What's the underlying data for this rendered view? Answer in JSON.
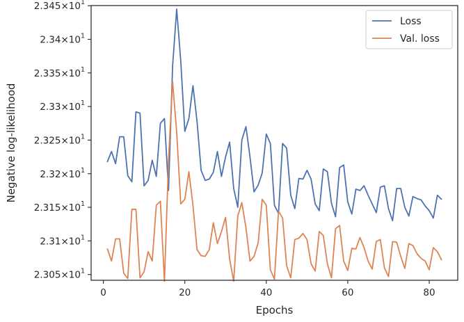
{
  "chart_data": {
    "type": "line",
    "title": "",
    "xlabel": "Epochs",
    "ylabel": "Negative log-likelihood",
    "xlim": [
      -3,
      87
    ],
    "ylim": [
      23.0414,
      23.4502
    ],
    "x_ticks": [
      0,
      20,
      40,
      60,
      80
    ],
    "x_tick_labels": [
      "0",
      "20",
      "40",
      "60",
      "80"
    ],
    "y_ticks": [
      23.05,
      23.1,
      23.15,
      23.2,
      23.25,
      23.3,
      23.35,
      23.4,
      23.45
    ],
    "y_tick_labels": [
      {
        "mantissa": "2.305",
        "exponent": "1"
      },
      {
        "mantissa": "2.31",
        "exponent": "1"
      },
      {
        "mantissa": "2.315",
        "exponent": "1"
      },
      {
        "mantissa": "2.32",
        "exponent": "1"
      },
      {
        "mantissa": "2.325",
        "exponent": "1"
      },
      {
        "mantissa": "2.33",
        "exponent": "1"
      },
      {
        "mantissa": "2.335",
        "exponent": "1"
      },
      {
        "mantissa": "2.34",
        "exponent": "1"
      },
      {
        "mantissa": "2.345",
        "exponent": "1"
      }
    ],
    "y_tick_times": "×10",
    "grid": false,
    "legend_position": "top-right",
    "series": [
      {
        "name": "Loss",
        "color": "#4c72b0",
        "x": [
          1,
          2,
          3,
          4,
          5,
          6,
          7,
          8,
          9,
          10,
          11,
          12,
          13,
          14,
          15,
          16,
          17,
          18,
          19,
          20,
          21,
          22,
          23,
          24,
          25,
          26,
          27,
          28,
          29,
          30,
          31,
          32,
          33,
          34,
          35,
          36,
          37,
          38,
          39,
          40,
          41,
          42,
          43,
          44,
          45,
          46,
          47,
          48,
          49,
          50,
          51,
          52,
          53,
          54,
          55,
          56,
          57,
          58,
          59,
          60,
          61,
          62,
          63,
          64,
          65,
          66,
          67,
          68,
          69,
          70,
          71,
          72,
          73,
          74,
          75,
          76,
          77,
          78,
          79,
          80,
          81,
          82,
          83
        ],
        "y": [
          23.218,
          23.233,
          23.215,
          23.255,
          23.255,
          23.197,
          23.188,
          23.292,
          23.29,
          23.182,
          23.19,
          23.22,
          23.196,
          23.275,
          23.282,
          23.175,
          23.36,
          23.445,
          23.368,
          23.263,
          23.282,
          23.331,
          23.278,
          23.205,
          23.19,
          23.192,
          23.202,
          23.233,
          23.196,
          23.225,
          23.247,
          23.178,
          23.15,
          23.25,
          23.27,
          23.225,
          23.173,
          23.183,
          23.201,
          23.259,
          23.245,
          23.153,
          23.141,
          23.245,
          23.238,
          23.168,
          23.148,
          23.193,
          23.192,
          23.205,
          23.192,
          23.155,
          23.145,
          23.207,
          23.203,
          23.156,
          23.136,
          23.209,
          23.213,
          23.158,
          23.14,
          23.177,
          23.175,
          23.182,
          23.168,
          23.155,
          23.142,
          23.18,
          23.182,
          23.148,
          23.13,
          23.178,
          23.178,
          23.15,
          23.137,
          23.166,
          23.163,
          23.161,
          23.152,
          23.145,
          23.134,
          23.168,
          23.162
        ]
      },
      {
        "name": "Val. loss",
        "color": "#dd8452",
        "x": [
          1,
          2,
          3,
          4,
          5,
          6,
          7,
          8,
          9,
          10,
          11,
          12,
          13,
          14,
          15,
          16,
          17,
          18,
          19,
          20,
          21,
          22,
          23,
          24,
          25,
          26,
          27,
          28,
          29,
          30,
          31,
          32,
          33,
          34,
          35,
          36,
          37,
          38,
          39,
          40,
          41,
          42,
          43,
          44,
          45,
          46,
          47,
          48,
          49,
          50,
          51,
          52,
          53,
          54,
          55,
          56,
          57,
          58,
          59,
          60,
          61,
          62,
          63,
          64,
          65,
          66,
          67,
          68,
          69,
          70,
          71,
          72,
          73,
          74,
          75,
          76,
          77,
          78,
          79,
          80,
          81,
          82,
          83
        ],
        "y": [
          23.088,
          23.07,
          23.103,
          23.103,
          23.052,
          23.044,
          23.147,
          23.147,
          23.045,
          23.054,
          23.084,
          23.07,
          23.153,
          23.159,
          23.04,
          23.22,
          23.337,
          23.262,
          23.155,
          23.162,
          23.203,
          23.153,
          23.087,
          23.078,
          23.077,
          23.087,
          23.127,
          23.096,
          23.114,
          23.135,
          23.073,
          23.04,
          23.137,
          23.157,
          23.12,
          23.07,
          23.077,
          23.097,
          23.162,
          23.153,
          23.057,
          23.043,
          23.144,
          23.134,
          23.063,
          23.045,
          23.102,
          23.104,
          23.111,
          23.102,
          23.066,
          23.055,
          23.114,
          23.108,
          23.066,
          23.045,
          23.118,
          23.123,
          23.07,
          23.056,
          23.089,
          23.088,
          23.105,
          23.09,
          23.07,
          23.058,
          23.099,
          23.102,
          23.06,
          23.047,
          23.099,
          23.098,
          23.077,
          23.059,
          23.096,
          23.093,
          23.081,
          23.074,
          23.07,
          23.057,
          23.09,
          23.084,
          23.072
        ]
      }
    ]
  }
}
